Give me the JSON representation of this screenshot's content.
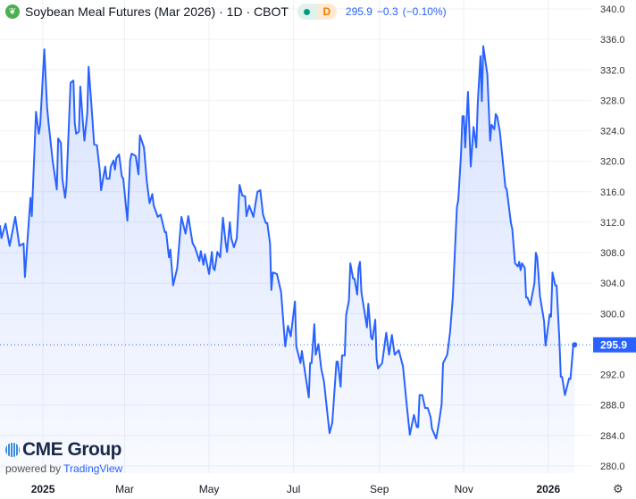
{
  "header": {
    "title": "Soybean Meal Futures (Mar 2026) · 1D · CBOT",
    "badge_label": "D",
    "price": "295.9",
    "change": "−0.3",
    "change_pct": "(−0.10%)",
    "logo_icon": "soybean-leaf-icon"
  },
  "branding": {
    "brand": "CME Group",
    "powered_by": "powered by",
    "platform": "TradingView"
  },
  "colors": {
    "line": "#2962ff",
    "price_label_bg": "#2962ff",
    "market_dot": "#089981",
    "badge_d": "#f57c00"
  },
  "chart_data": {
    "type": "area",
    "title": "Soybean Meal Futures (Mar 2026) · 1D · CBOT",
    "ylim": [
      278,
      341
    ],
    "y_ticks": [
      "280.0",
      "284.0",
      "288.0",
      "292.0",
      "300.0",
      "304.0",
      "308.0",
      "312.0",
      "316.0",
      "320.0",
      "324.0",
      "328.0",
      "332.0",
      "336.0",
      "340.0"
    ],
    "x_ticks": [
      {
        "label": "2025",
        "date": "2025-01-01"
      },
      {
        "label": "Mar",
        "date": "2025-03-01"
      },
      {
        "label": "May",
        "date": "2025-05-01"
      },
      {
        "label": "Jul",
        "date": "2025-07-01"
      },
      {
        "label": "Sep",
        "date": "2025-09-01"
      },
      {
        "label": "Nov",
        "date": "2025-11-01"
      },
      {
        "label": "2026",
        "date": "2026-01-01"
      }
    ],
    "last_value": "295.9",
    "grid": true,
    "points": [
      [
        "2024-12-01",
        311.6
      ],
      [
        "2024-12-02",
        309.9
      ],
      [
        "2024-12-05",
        311.8
      ],
      [
        "2024-12-08",
        308.9
      ],
      [
        "2024-12-12",
        312.7
      ],
      [
        "2024-12-15",
        308.9
      ],
      [
        "2024-12-18",
        309.2
      ],
      [
        "2024-12-19",
        304.8
      ],
      [
        "2024-12-23",
        315.2
      ],
      [
        "2024-12-24",
        312.8
      ],
      [
        "2024-12-27",
        326.5
      ],
      [
        "2024-12-29",
        323.6
      ],
      [
        "2024-12-30",
        324.8
      ],
      [
        "2025-01-02",
        334.7
      ],
      [
        "2025-01-04",
        327.1
      ],
      [
        "2025-01-05",
        325.1
      ],
      [
        "2025-01-08",
        320.1
      ],
      [
        "2025-01-11",
        316.3
      ],
      [
        "2025-01-12",
        323.0
      ],
      [
        "2025-01-14",
        322.4
      ],
      [
        "2025-01-15",
        317.7
      ],
      [
        "2025-01-17",
        315.2
      ],
      [
        "2025-01-18",
        316.9
      ],
      [
        "2025-01-21",
        330.3
      ],
      [
        "2025-01-23",
        330.6
      ],
      [
        "2025-01-24",
        325.0
      ],
      [
        "2025-01-25",
        323.6
      ],
      [
        "2025-01-27",
        323.9
      ],
      [
        "2025-01-28",
        329.8
      ],
      [
        "2025-01-30",
        324.8
      ],
      [
        "2025-01-31",
        322.7
      ],
      [
        "2025-02-02",
        326.3
      ],
      [
        "2025-02-03",
        332.4
      ],
      [
        "2025-02-05",
        327.5
      ],
      [
        "2025-02-07",
        322.2
      ],
      [
        "2025-02-09",
        322.1
      ],
      [
        "2025-02-11",
        318.9
      ],
      [
        "2025-02-12",
        316.2
      ],
      [
        "2025-02-15",
        319.3
      ],
      [
        "2025-02-16",
        317.7
      ],
      [
        "2025-02-18",
        317.7
      ],
      [
        "2025-02-19",
        319.3
      ],
      [
        "2025-02-21",
        320.1
      ],
      [
        "2025-02-22",
        318.9
      ],
      [
        "2025-02-23",
        320.4
      ],
      [
        "2025-02-25",
        320.9
      ],
      [
        "2025-02-27",
        318.0
      ],
      [
        "2025-02-28",
        317.7
      ],
      [
        "2025-03-03",
        312.2
      ],
      [
        "2025-03-05",
        320.1
      ],
      [
        "2025-03-06",
        321.0
      ],
      [
        "2025-03-09",
        320.7
      ],
      [
        "2025-03-11",
        318.3
      ],
      [
        "2025-03-12",
        323.4
      ],
      [
        "2025-03-15",
        321.8
      ],
      [
        "2025-03-17",
        317.4
      ],
      [
        "2025-03-19",
        314.5
      ],
      [
        "2025-03-21",
        315.7
      ],
      [
        "2025-03-22",
        314.2
      ],
      [
        "2025-03-25",
        312.7
      ],
      [
        "2025-03-27",
        313.0
      ],
      [
        "2025-03-30",
        310.7
      ],
      [
        "2025-03-31",
        310.7
      ],
      [
        "2025-04-02",
        307.4
      ],
      [
        "2025-04-03",
        308.4
      ],
      [
        "2025-04-05",
        303.7
      ],
      [
        "2025-04-08",
        306.0
      ],
      [
        "2025-04-11",
        312.7
      ],
      [
        "2025-04-14",
        310.5
      ],
      [
        "2025-04-16",
        312.8
      ],
      [
        "2025-04-19",
        309.3
      ],
      [
        "2025-04-21",
        308.6
      ],
      [
        "2025-04-24",
        306.9
      ],
      [
        "2025-04-25",
        308.2
      ],
      [
        "2025-04-27",
        306.4
      ],
      [
        "2025-04-28",
        307.8
      ],
      [
        "2025-05-01",
        305.2
      ],
      [
        "2025-05-03",
        308.1
      ],
      [
        "2025-05-04",
        306.0
      ],
      [
        "2025-05-05",
        305.7
      ],
      [
        "2025-05-07",
        308.1
      ],
      [
        "2025-05-09",
        307.4
      ],
      [
        "2025-05-11",
        312.6
      ],
      [
        "2025-05-13",
        309.2
      ],
      [
        "2025-05-14",
        308.1
      ],
      [
        "2025-05-16",
        312.0
      ],
      [
        "2025-05-17",
        309.9
      ],
      [
        "2025-05-19",
        308.7
      ],
      [
        "2025-05-21",
        309.9
      ],
      [
        "2025-05-23",
        316.9
      ],
      [
        "2025-05-25",
        315.5
      ],
      [
        "2025-05-27",
        315.4
      ],
      [
        "2025-05-28",
        312.8
      ],
      [
        "2025-05-30",
        314.2
      ],
      [
        "2025-06-02",
        312.7
      ],
      [
        "2025-06-04",
        315.0
      ],
      [
        "2025-06-05",
        316.0
      ],
      [
        "2025-06-07",
        316.2
      ],
      [
        "2025-06-09",
        313.0
      ],
      [
        "2025-06-11",
        311.9
      ],
      [
        "2025-06-12",
        311.9
      ],
      [
        "2025-06-14",
        309.2
      ],
      [
        "2025-06-15",
        303.1
      ],
      [
        "2025-06-16",
        305.4
      ],
      [
        "2025-06-19",
        305.2
      ],
      [
        "2025-06-22",
        302.8
      ],
      [
        "2025-06-25",
        295.7
      ],
      [
        "2025-06-27",
        298.4
      ],
      [
        "2025-06-29",
        297.0
      ],
      [
        "2025-07-02",
        301.6
      ],
      [
        "2025-07-03",
        295.7
      ],
      [
        "2025-07-06",
        293.5
      ],
      [
        "2025-07-07",
        295.1
      ],
      [
        "2025-07-12",
        289.0
      ],
      [
        "2025-07-13",
        293.5
      ],
      [
        "2025-07-14",
        293.5
      ],
      [
        "2025-07-16",
        298.6
      ],
      [
        "2025-07-17",
        294.6
      ],
      [
        "2025-07-19",
        296.0
      ],
      [
        "2025-07-21",
        292.8
      ],
      [
        "2025-07-23",
        291.1
      ],
      [
        "2025-07-27",
        284.3
      ],
      [
        "2025-07-29",
        285.7
      ],
      [
        "2025-08-01",
        293.7
      ],
      [
        "2025-08-02",
        293.7
      ],
      [
        "2025-08-04",
        290.4
      ],
      [
        "2025-08-05",
        294.5
      ],
      [
        "2025-08-07",
        294.5
      ],
      [
        "2025-08-08",
        299.8
      ],
      [
        "2025-08-10",
        301.7
      ],
      [
        "2025-08-11",
        306.6
      ],
      [
        "2025-08-13",
        304.6
      ],
      [
        "2025-08-14",
        304.6
      ],
      [
        "2025-08-16",
        302.5
      ],
      [
        "2025-08-17",
        306.0
      ],
      [
        "2025-08-18",
        306.8
      ],
      [
        "2025-08-19",
        302.8
      ],
      [
        "2025-08-23",
        298.2
      ],
      [
        "2025-08-24",
        301.3
      ],
      [
        "2025-08-26",
        296.9
      ],
      [
        "2025-08-27",
        296.6
      ],
      [
        "2025-08-29",
        299.2
      ],
      [
        "2025-08-30",
        294.1
      ],
      [
        "2025-08-31",
        292.8
      ],
      [
        "2025-09-03",
        293.5
      ],
      [
        "2025-09-06",
        297.5
      ],
      [
        "2025-09-08",
        294.6
      ],
      [
        "2025-09-10",
        297.2
      ],
      [
        "2025-09-12",
        294.6
      ],
      [
        "2025-09-15",
        295.2
      ],
      [
        "2025-09-18",
        293.1
      ],
      [
        "2025-09-21",
        287.6
      ],
      [
        "2025-09-23",
        284.1
      ],
      [
        "2025-09-26",
        286.7
      ],
      [
        "2025-09-28",
        285.1
      ],
      [
        "2025-09-29",
        285.1
      ],
      [
        "2025-09-30",
        289.3
      ],
      [
        "2025-10-02",
        289.3
      ],
      [
        "2025-10-04",
        287.6
      ],
      [
        "2025-10-06",
        287.6
      ],
      [
        "2025-10-08",
        286.4
      ],
      [
        "2025-10-09",
        284.9
      ],
      [
        "2025-10-12",
        283.6
      ],
      [
        "2025-10-14",
        285.7
      ],
      [
        "2025-10-16",
        288.1
      ],
      [
        "2025-10-17",
        293.5
      ],
      [
        "2025-10-20",
        294.6
      ],
      [
        "2025-10-22",
        297.5
      ],
      [
        "2025-10-24",
        302.1
      ],
      [
        "2025-10-27",
        313.9
      ],
      [
        "2025-10-28",
        315.0
      ],
      [
        "2025-10-30",
        320.9
      ],
      [
        "2025-10-31",
        325.9
      ],
      [
        "2025-11-01",
        325.9
      ],
      [
        "2025-11-02",
        321.8
      ],
      [
        "2025-11-04",
        329.1
      ],
      [
        "2025-11-06",
        319.3
      ],
      [
        "2025-11-08",
        324.5
      ],
      [
        "2025-11-10",
        321.8
      ],
      [
        "2025-11-11",
        327.5
      ],
      [
        "2025-11-13",
        333.8
      ],
      [
        "2025-11-14",
        327.9
      ],
      [
        "2025-11-15",
        335.1
      ],
      [
        "2025-11-18",
        331.4
      ],
      [
        "2025-11-20",
        322.7
      ],
      [
        "2025-11-21",
        324.8
      ],
      [
        "2025-11-23",
        324.2
      ],
      [
        "2025-11-24",
        326.2
      ],
      [
        "2025-11-25",
        325.9
      ],
      [
        "2025-11-27",
        323.9
      ],
      [
        "2025-12-01",
        316.6
      ],
      [
        "2025-12-02",
        316.3
      ],
      [
        "2025-12-05",
        311.9
      ],
      [
        "2025-12-06",
        311.1
      ],
      [
        "2025-12-08",
        306.6
      ],
      [
        "2025-12-10",
        306.2
      ],
      [
        "2025-12-11",
        306.8
      ],
      [
        "2025-12-12",
        305.7
      ],
      [
        "2025-12-13",
        306.6
      ],
      [
        "2025-12-15",
        306.0
      ],
      [
        "2025-12-16",
        302.1
      ],
      [
        "2025-12-17",
        302.1
      ],
      [
        "2025-12-19",
        301.1
      ],
      [
        "2025-12-20",
        302.1
      ],
      [
        "2025-12-22",
        304.0
      ],
      [
        "2025-12-23",
        308.0
      ],
      [
        "2025-12-24",
        307.4
      ],
      [
        "2025-12-26",
        302.3
      ],
      [
        "2025-12-29",
        299.0
      ],
      [
        "2025-12-30",
        295.8
      ],
      [
        "2026-01-02",
        299.9
      ],
      [
        "2026-01-03",
        299.6
      ],
      [
        "2026-01-04",
        305.4
      ],
      [
        "2026-01-06",
        303.7
      ],
      [
        "2026-01-07",
        303.7
      ],
      [
        "2026-01-09",
        296.6
      ],
      [
        "2026-01-10",
        291.7
      ],
      [
        "2026-01-11",
        291.7
      ],
      [
        "2026-01-13",
        289.3
      ],
      [
        "2026-01-16",
        291.5
      ],
      [
        "2026-01-17",
        291.4
      ],
      [
        "2026-01-19",
        295.8
      ],
      [
        "2026-01-20",
        295.9
      ]
    ]
  }
}
